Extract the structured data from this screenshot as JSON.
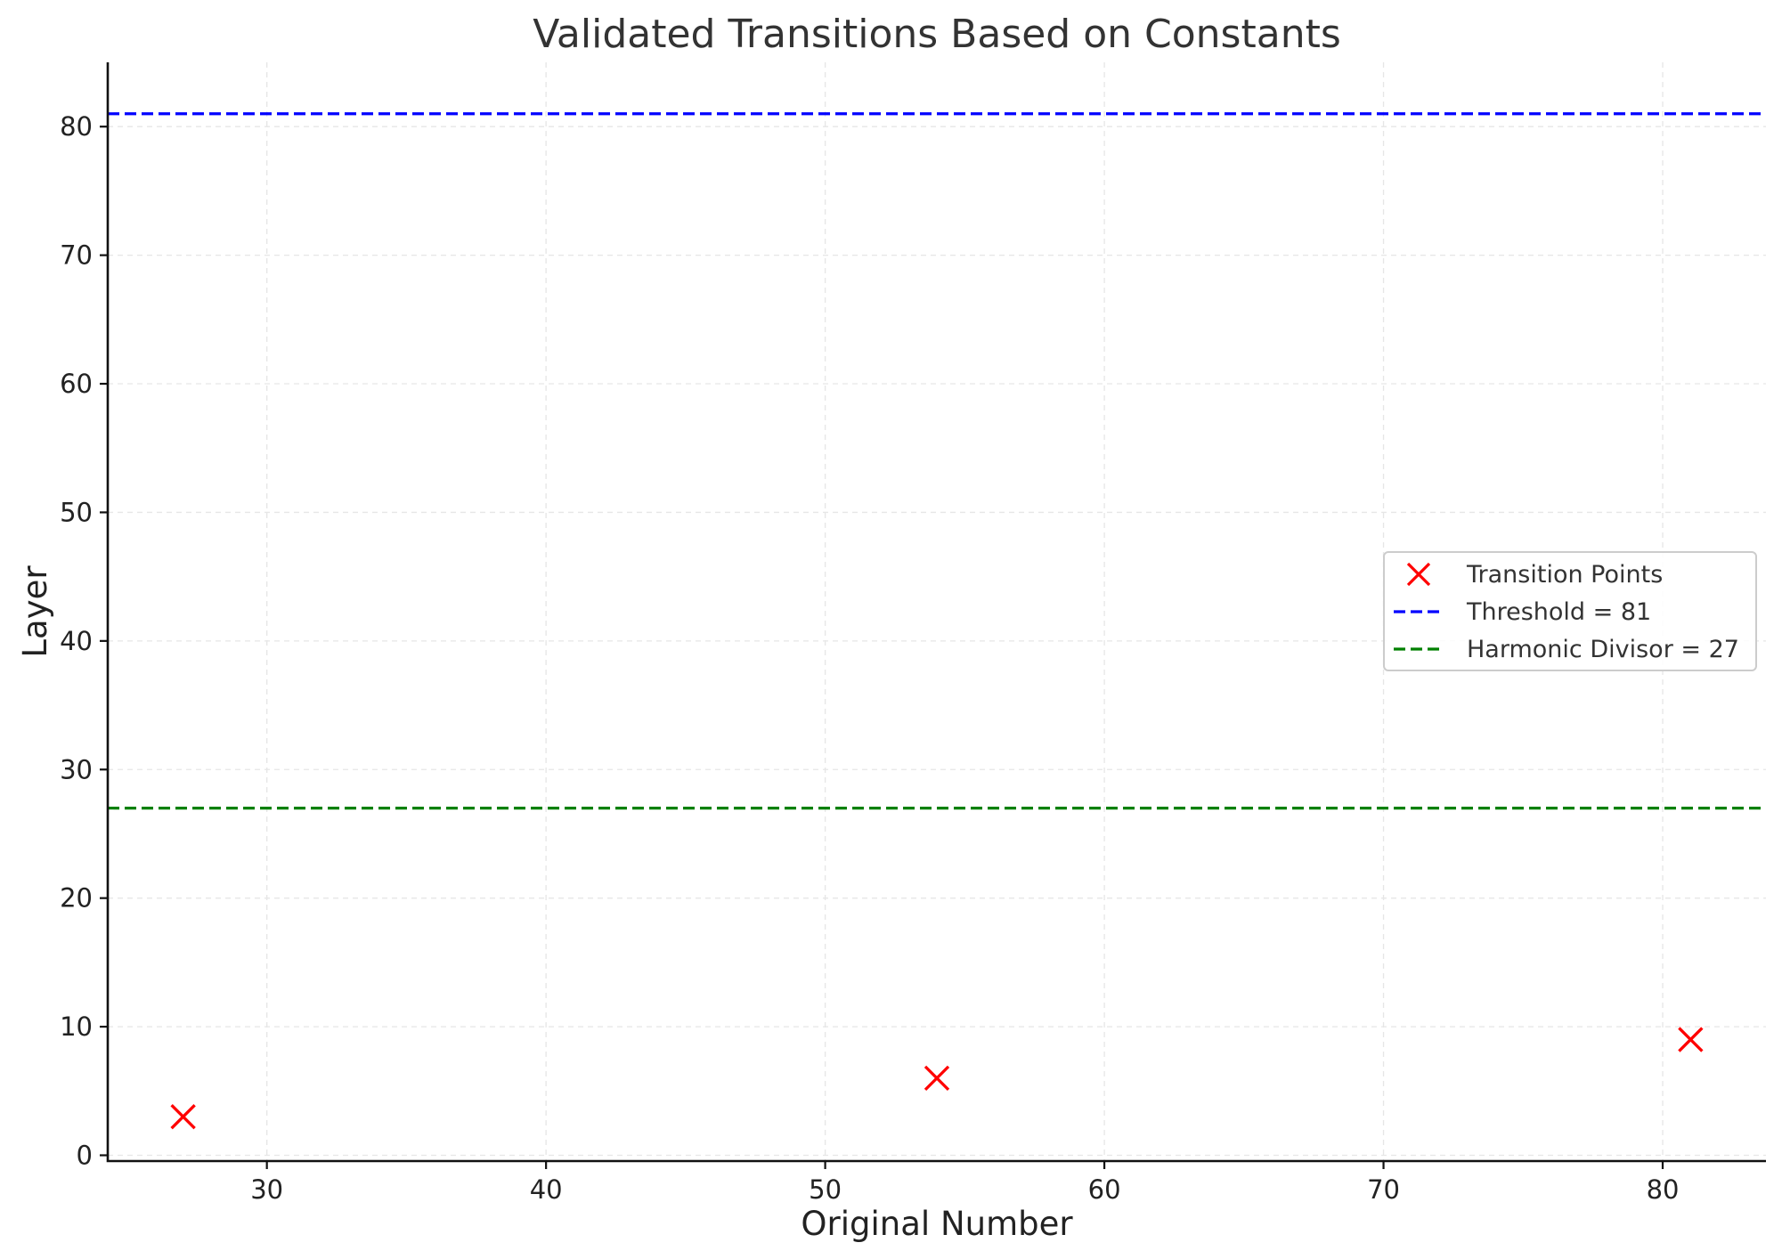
{
  "chart_data": {
    "type": "scatter",
    "title": "Validated Transitions Based on Constants",
    "xlabel": "Original Number",
    "ylabel": "Layer",
    "xlim": [
      24.3,
      83.7
    ],
    "ylim": [
      -0.45,
      85
    ],
    "xticks": [
      30,
      40,
      50,
      60,
      70,
      80
    ],
    "yticks": [
      0,
      10,
      20,
      30,
      40,
      50,
      60,
      70,
      80
    ],
    "grid": true,
    "legend_position": "center-right",
    "series": [
      {
        "name": "Transition Points",
        "marker": "x",
        "color": "#ff0000",
        "x": [
          27,
          54,
          81
        ],
        "y": [
          3,
          6,
          9
        ]
      }
    ],
    "reference_lines": [
      {
        "name": "Threshold = 81",
        "y": 81,
        "style": "dashed",
        "color": "#0000ff"
      },
      {
        "name": "Harmonic Divisor = 27",
        "y": 27,
        "style": "dashed",
        "color": "#008000"
      }
    ]
  }
}
